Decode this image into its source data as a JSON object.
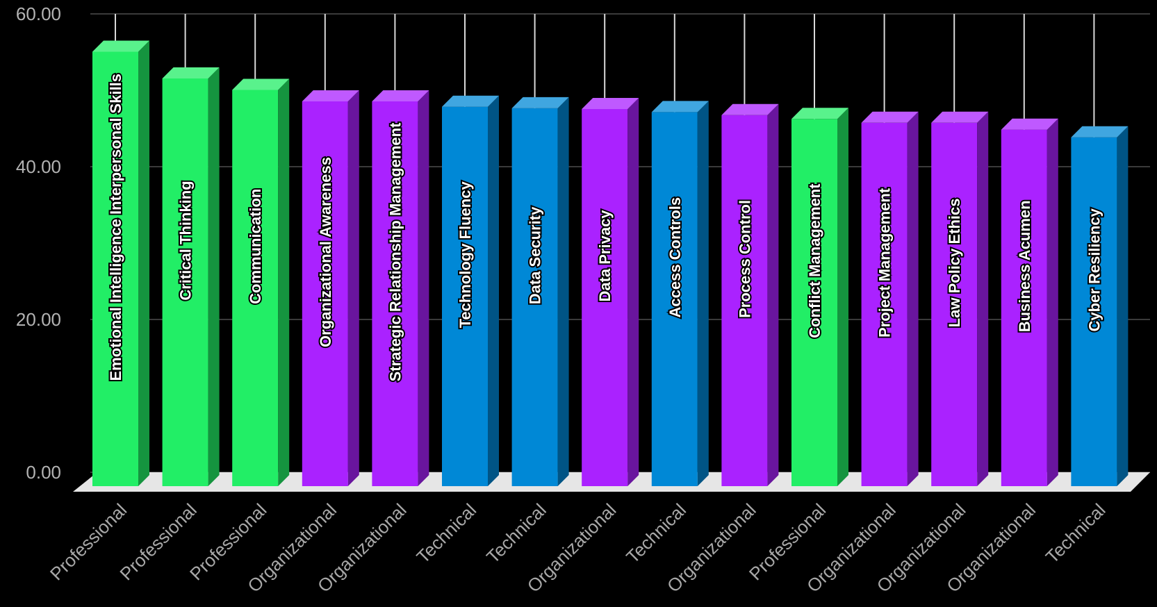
{
  "chart_data": {
    "type": "bar",
    "style": "3d-column",
    "grid": true,
    "ylim": [
      0,
      60
    ],
    "yticks": [
      "0.00",
      "20.00",
      "40.00",
      "60.00"
    ],
    "categories": [
      "Professional",
      "Professional",
      "Professional",
      "Organizational",
      "Organizational",
      "Technical",
      "Technical",
      "Organizational",
      "Technical",
      "Organizational",
      "Professional",
      "Organizational",
      "Organizational",
      "Organizational",
      "Technical"
    ],
    "labels": [
      "Emotional Intelligence Interpersonal Skills",
      "Critical Thinking",
      "Communication",
      "Organizational Awareness",
      "Strategic Relationship Management",
      "Technology Fluency",
      "Data Security",
      "Data Privacy",
      "Access Controls",
      "Process Control",
      "Conflict Management",
      "Project Management",
      "Law Policy Ethics",
      "Business Acumen",
      "Cyber Resiliency"
    ],
    "values": [
      56.5,
      53,
      51.5,
      50,
      50,
      49.3,
      49.1,
      49,
      48.6,
      48.2,
      47.7,
      47.2,
      47.2,
      46.3,
      45.3
    ],
    "category_colors": {
      "Professional": "#22ee66",
      "Organizational": "#aa22ff",
      "Technical": "#0088d6"
    }
  }
}
